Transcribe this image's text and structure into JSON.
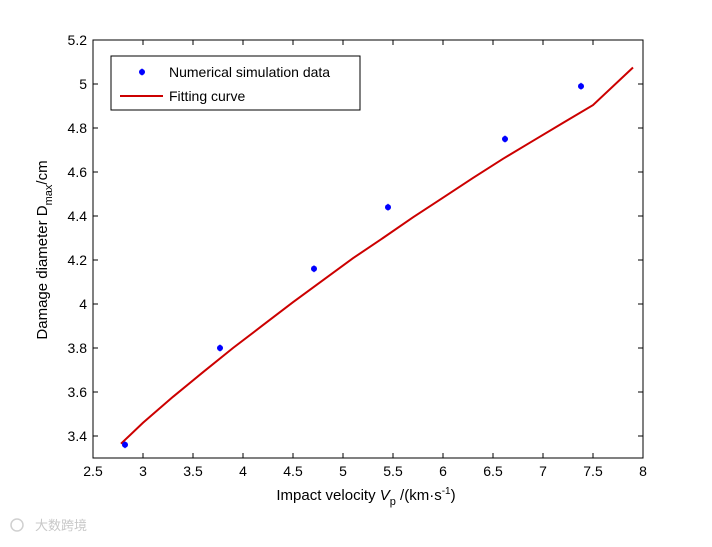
{
  "chart_data": {
    "type": "scatter",
    "title": "",
    "xlabel": {
      "main": "Impact velocity ",
      "var": "V",
      "sub": "p",
      "unit_open": " /(km·s",
      "unit_sup": "-1",
      "unit_close": ")"
    },
    "ylabel": {
      "main": "Damage diameter D",
      "sub": "max",
      "unit": "/cm"
    },
    "xlim": [
      2.5,
      8
    ],
    "ylim": [
      3.3,
      5.2
    ],
    "x_ticks": [
      2.5,
      3,
      3.5,
      4,
      4.5,
      5,
      5.5,
      6,
      6.5,
      7,
      7.5,
      8
    ],
    "y_ticks": [
      3.4,
      3.6,
      3.8,
      4,
      4.2,
      4.4,
      4.6,
      4.8,
      5,
      5.2
    ],
    "x_tick_labels": [
      "2.5",
      "3",
      "3.5",
      "4",
      "4.5",
      "5",
      "5.5",
      "6",
      "6.5",
      "7",
      "7.5",
      "8"
    ],
    "y_tick_labels": [
      "3.4",
      "3.6",
      "3.8",
      "4",
      "4.2",
      "4.4",
      "4.6",
      "4.8",
      "5",
      "5.2"
    ],
    "legend_position": "top-left",
    "series": [
      {
        "name": "Numerical simulation data",
        "kind": "markers",
        "color": "#0000ff",
        "x": [
          2.82,
          3.77,
          4.71,
          5.45,
          6.62,
          7.38
        ],
        "y": [
          3.36,
          3.8,
          4.16,
          4.44,
          4.75,
          4.99
        ]
      },
      {
        "name": "Fitting curve",
        "kind": "line",
        "color": "#cc0000",
        "x": [
          2.78,
          3.0,
          3.3,
          3.6,
          3.9,
          4.2,
          4.5,
          4.8,
          5.1,
          5.4,
          5.7,
          6.0,
          6.3,
          6.6,
          6.9,
          7.2,
          7.5,
          7.9
        ],
        "y": [
          3.365,
          3.46,
          3.578,
          3.69,
          3.8,
          3.904,
          4.008,
          4.108,
          4.208,
          4.3,
          4.394,
          4.483,
          4.573,
          4.66,
          4.742,
          4.823,
          4.904,
          5.075
        ]
      }
    ]
  },
  "watermark": "大数跨境"
}
